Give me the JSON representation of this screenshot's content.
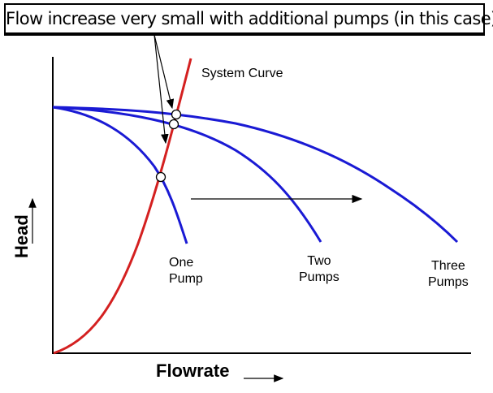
{
  "title": "Flow increase very small with additional pumps (in this case)",
  "axes": {
    "x_label": "Flowrate",
    "y_label": "Head"
  },
  "curves": {
    "system": {
      "label": "System Curve",
      "color": "#d42020"
    },
    "one_pump": {
      "label_line1": "One",
      "label_line2": "Pump",
      "color": "#1a1ad4"
    },
    "two_pumps": {
      "label_line1": "Two",
      "label_line2": "Pumps",
      "color": "#1a1ad4"
    },
    "three_pumps": {
      "label_line1": "Three",
      "label_line2": "Pumps",
      "color": "#1a1ad4"
    }
  }
}
